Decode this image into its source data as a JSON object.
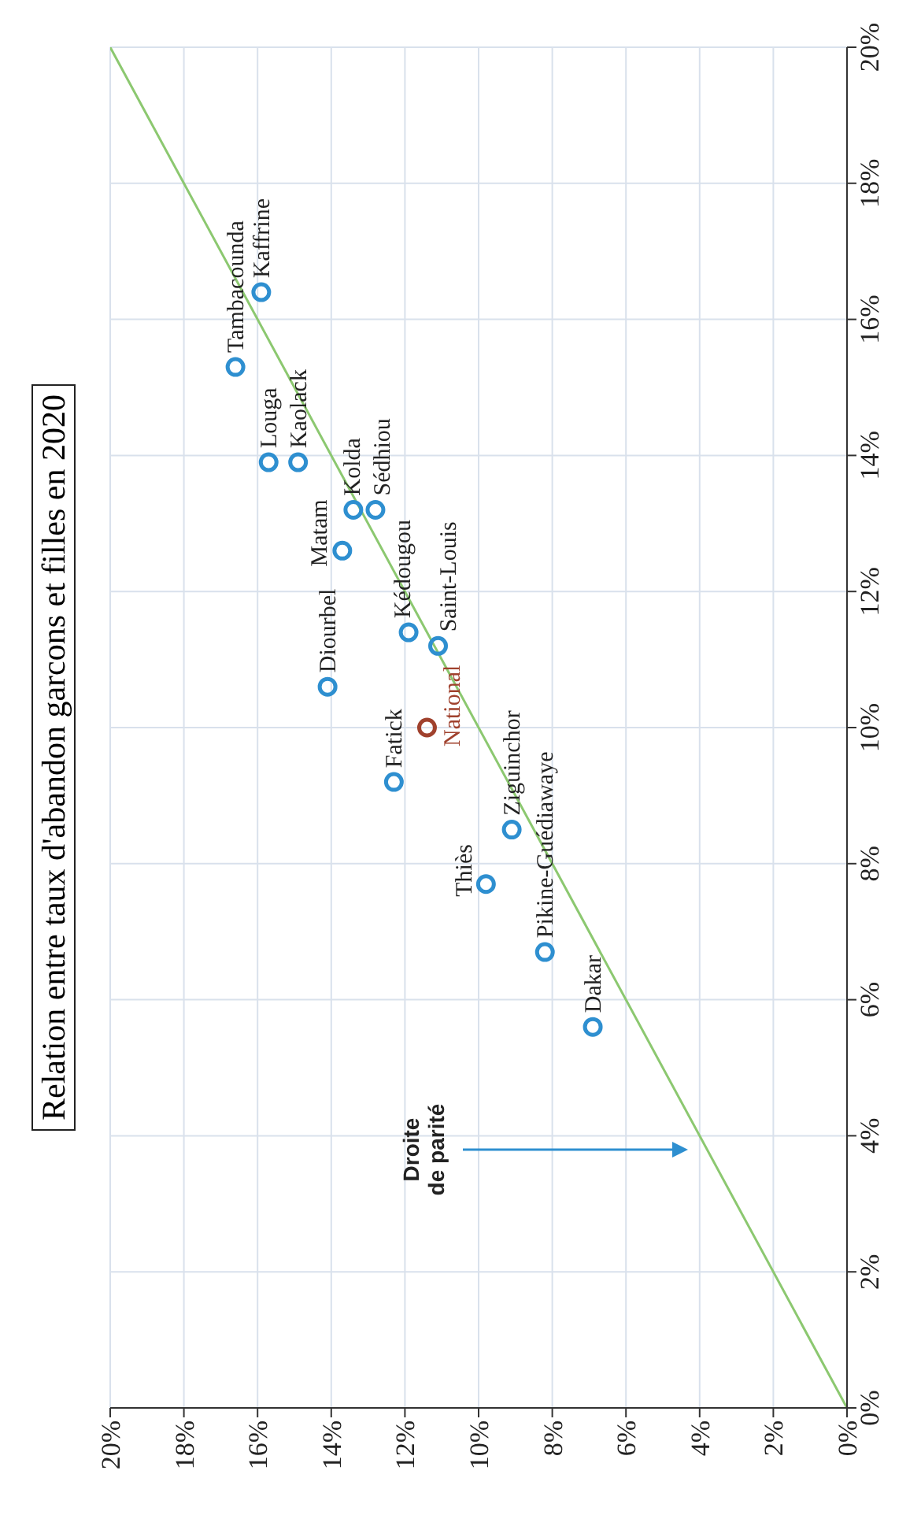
{
  "chart_data": {
    "type": "scatter",
    "title": "Relation entre taux d'abandon garcons et filles en 2020",
    "xlim": [
      20,
      0
    ],
    "ylim": [
      0,
      20
    ],
    "xticks": [
      {
        "value": 0,
        "label": "0%"
      },
      {
        "value": 2,
        "label": "2%"
      },
      {
        "value": 4,
        "label": "4%"
      },
      {
        "value": 6,
        "label": "6%"
      },
      {
        "value": 8,
        "label": "8%"
      },
      {
        "value": 10,
        "label": "10%"
      },
      {
        "value": 12,
        "label": "12%"
      },
      {
        "value": 14,
        "label": "14%"
      },
      {
        "value": 16,
        "label": "16%"
      },
      {
        "value": 18,
        "label": "18%"
      },
      {
        "value": 20,
        "label": "20%"
      }
    ],
    "yticks": [
      {
        "value": 0,
        "label": "0%"
      },
      {
        "value": 2,
        "label": "2%"
      },
      {
        "value": 4,
        "label": "4%"
      },
      {
        "value": 6,
        "label": "6%"
      },
      {
        "value": 8,
        "label": "8%"
      },
      {
        "value": 10,
        "label": "10%"
      },
      {
        "value": 12,
        "label": "12%"
      },
      {
        "value": 14,
        "label": "14%"
      },
      {
        "value": 16,
        "label": "16%"
      },
      {
        "value": 18,
        "label": "18%"
      },
      {
        "value": 20,
        "label": "20%"
      }
    ],
    "grid": true,
    "series": [
      {
        "type": "scatter",
        "marker": "circle",
        "color": "#2e8fd0",
        "x": [
          15.9,
          16.6,
          15.7,
          14.9,
          13.4,
          12.8,
          13.7,
          11.9,
          11.1,
          14.1,
          12.3,
          9.1,
          9.8,
          8.2,
          6.9
        ],
        "values": [
          16.4,
          15.3,
          13.9,
          13.9,
          13.2,
          13.2,
          12.6,
          11.4,
          11.2,
          10.6,
          9.2,
          8.5,
          7.7,
          6.7,
          5.6
        ]
      },
      {
        "type": "scatter",
        "marker": "circle",
        "color": "#a0412d",
        "x": [
          11.4
        ],
        "values": [
          10.0
        ]
      },
      {
        "type": "line",
        "marker": "none",
        "color": "#8cc870",
        "x": [
          0,
          20
        ],
        "values": [
          0,
          20
        ]
      }
    ],
    "annotations": [
      {
        "text": "Kaffrine",
        "x": 15.9,
        "y": 16.4
      },
      {
        "text": "Tambacounda",
        "x": 16.6,
        "y": 15.3
      },
      {
        "text": "Louga",
        "x": 15.7,
        "y": 13.9
      },
      {
        "text": "Kaolack",
        "x": 14.9,
        "y": 13.9
      },
      {
        "text": "Kolda",
        "x": 13.4,
        "y": 13.2
      },
      {
        "text": "Sédhiou",
        "x": 12.8,
        "y": 13.2
      },
      {
        "text": "Matam",
        "x": 13.7,
        "y": 12.6
      },
      {
        "text": "Kédougou",
        "x": 11.9,
        "y": 11.4
      },
      {
        "text": "Saint-Louis",
        "x": 11.1,
        "y": 11.2
      },
      {
        "text": "Diourbel",
        "x": 14.1,
        "y": 10.6
      },
      {
        "text": "National",
        "x": 11.4,
        "y": 10.0
      },
      {
        "text": "Fatick",
        "x": 12.3,
        "y": 9.2
      },
      {
        "text": "Ziguinchor",
        "x": 9.1,
        "y": 8.5
      },
      {
        "text": "Thiès",
        "x": 9.8,
        "y": 7.7
      },
      {
        "text": "Pikine-Guédiawaye",
        "x": 8.2,
        "y": 6.7
      },
      {
        "text": "Dakar",
        "x": 6.9,
        "y": 5.6
      },
      "Droite de parité"
    ]
  }
}
